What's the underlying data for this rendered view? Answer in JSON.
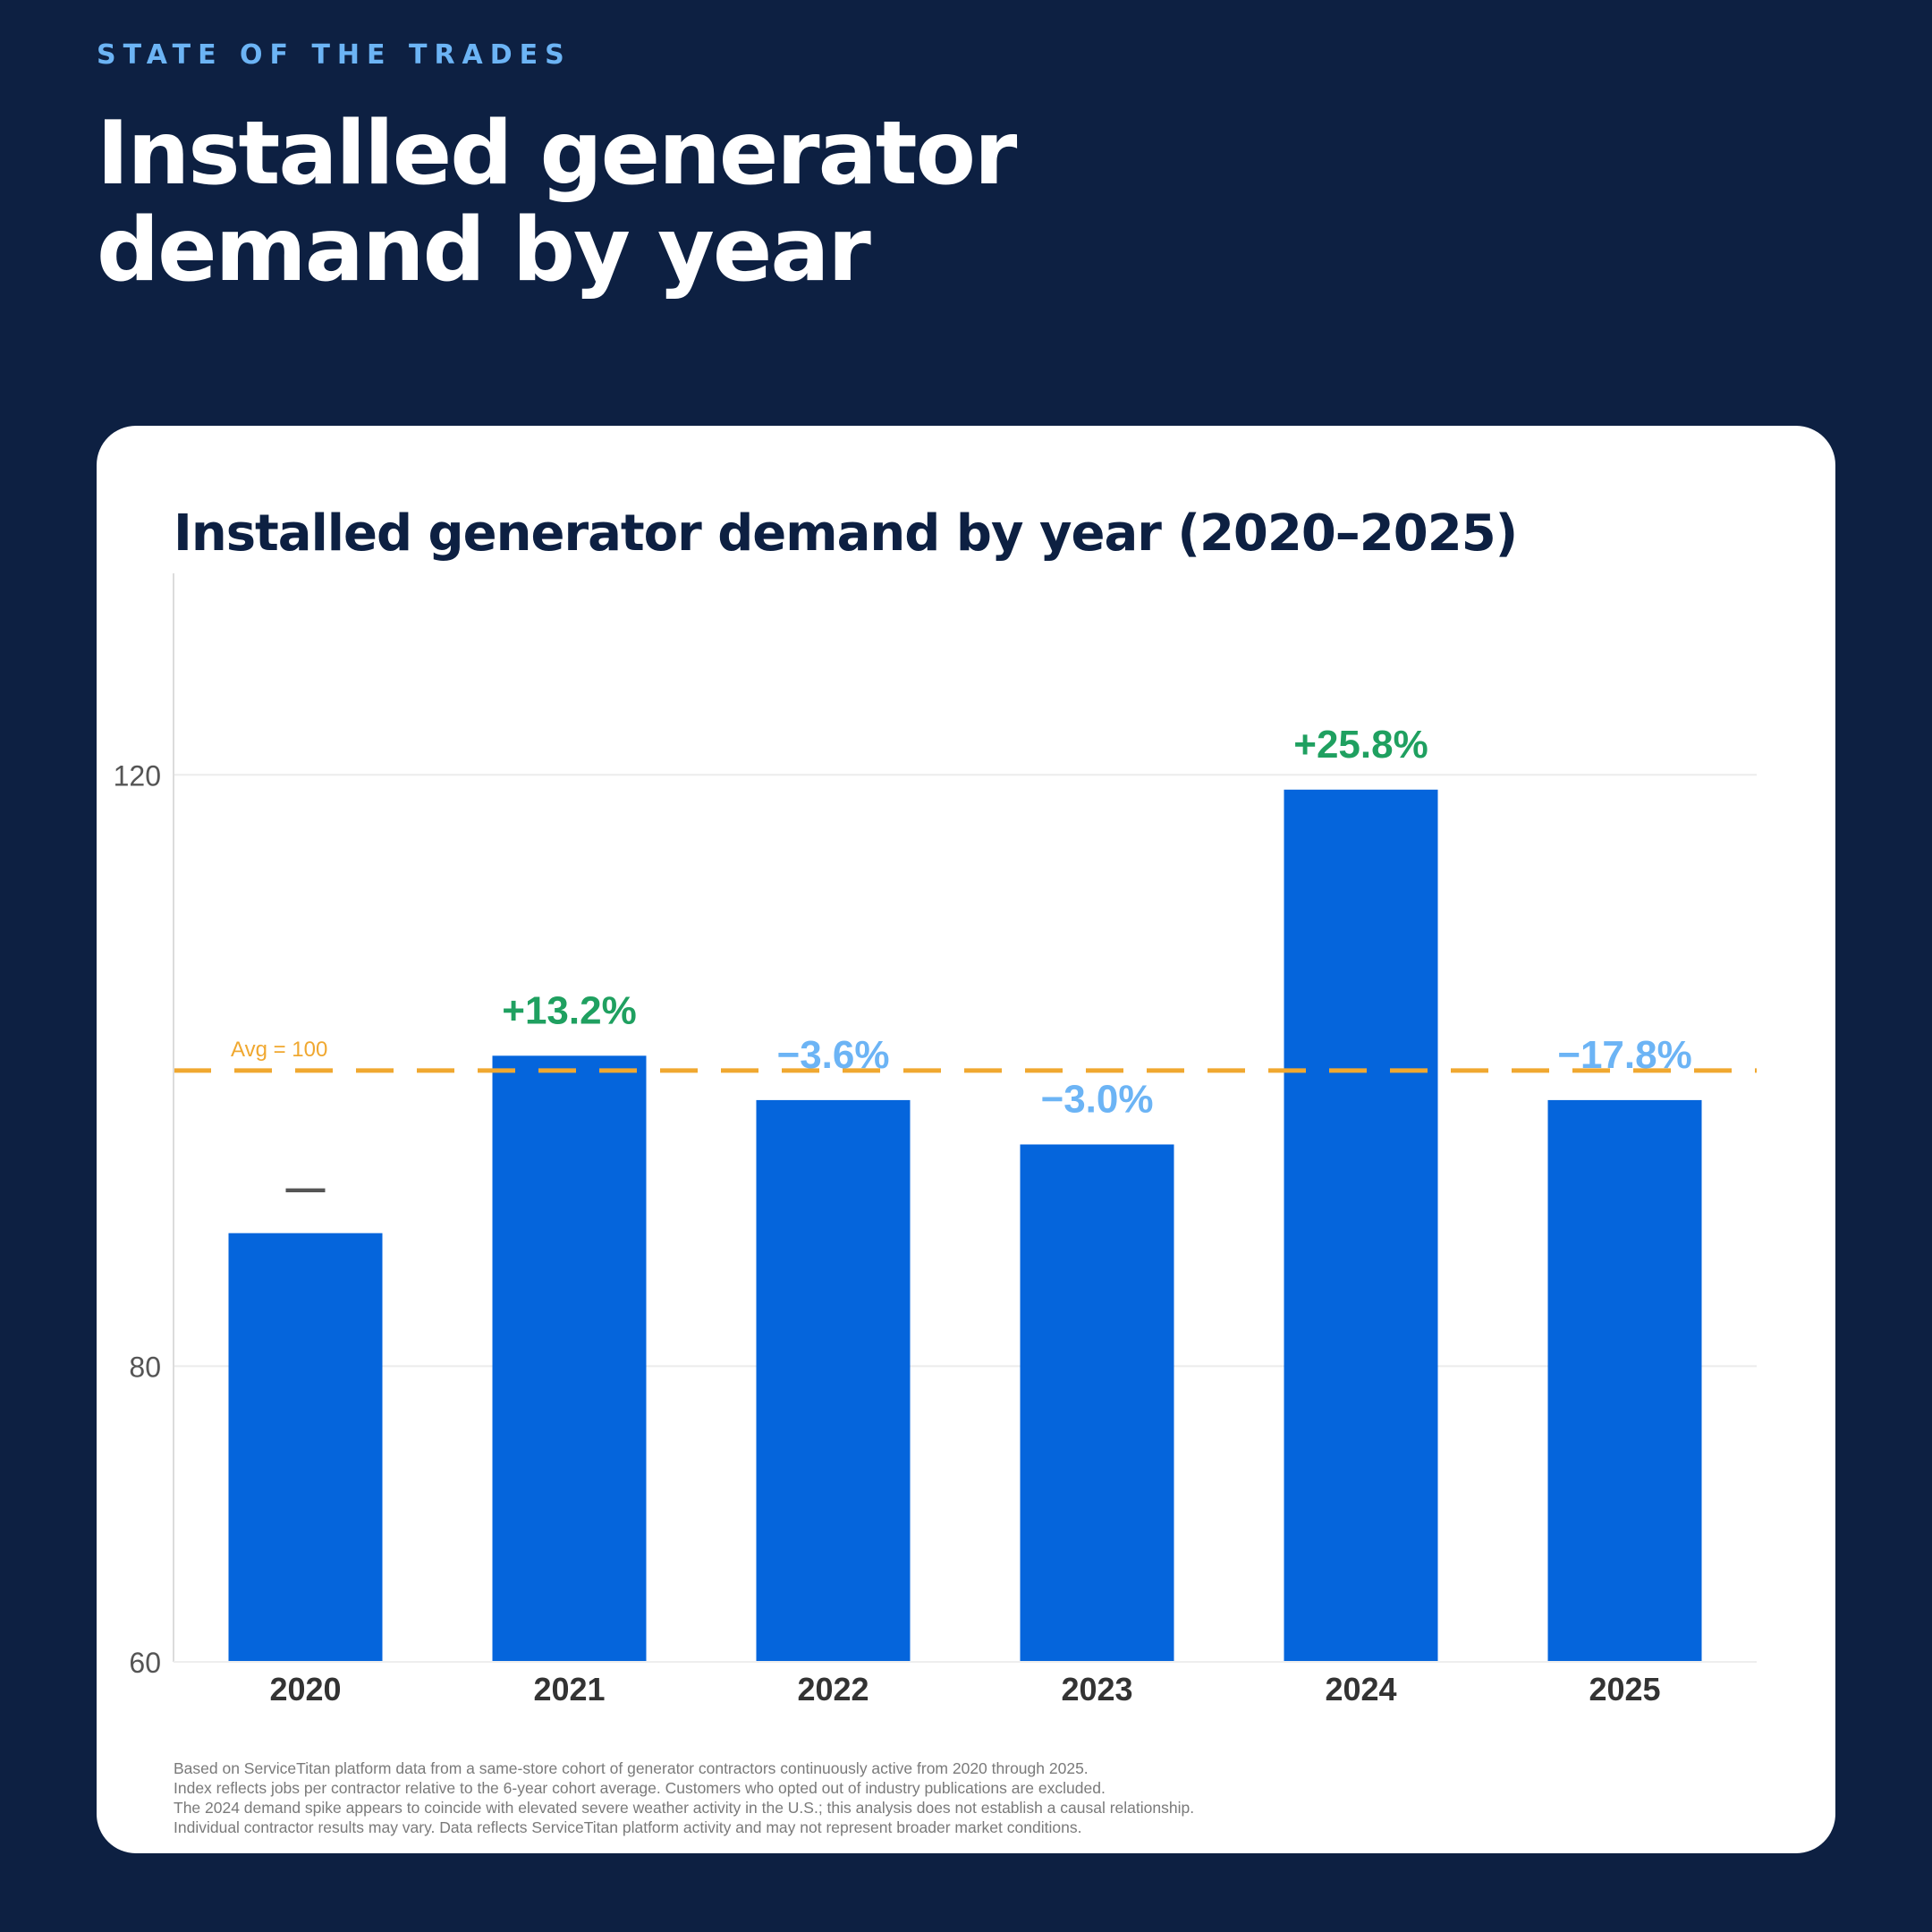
{
  "header": {
    "eyebrow": "STATE OF THE TRADES",
    "title_line1": "Installed generator",
    "title_line2": "demand by year"
  },
  "colors": {
    "background": "#0d2042",
    "bar": "#0565dc",
    "avg_line": "#f0a830",
    "positive": "#1fa060",
    "negative": "#6cb4f5",
    "neutral": "#555555"
  },
  "chart_data": {
    "type": "bar",
    "title": "Installed generator demand by year (2020–2025)",
    "categories": [
      "2020",
      "2021",
      "2022",
      "2023",
      "2024",
      "2025"
    ],
    "values": [
      89,
      101,
      98,
      95,
      119,
      98
    ],
    "change_labels": [
      "—",
      "+13.2%",
      "−3.6%",
      "−3.0%",
      "+25.8%",
      "−17.8%"
    ],
    "change_kinds": [
      "neutral",
      "positive",
      "negative",
      "negative",
      "positive",
      "negative"
    ],
    "ylim": [
      60,
      130
    ],
    "yticks": [
      60,
      80,
      120
    ],
    "reference_line": {
      "value": 100,
      "label": "Avg = 100"
    },
    "grid": true,
    "legend": "none"
  },
  "footnotes": [
    "Based on ServiceTitan platform data from a same-store cohort of generator contractors continuously active from 2020 through 2025.",
    "Index reflects jobs per contractor relative to the 6-year cohort average. Customers who opted out of industry publications are excluded.",
    "The 2024 demand spike appears to coincide with elevated severe weather activity in the U.S.; this analysis does not establish a causal relationship.",
    "Individual contractor results may vary. Data reflects ServiceTitan platform activity and may not represent broader market conditions."
  ]
}
